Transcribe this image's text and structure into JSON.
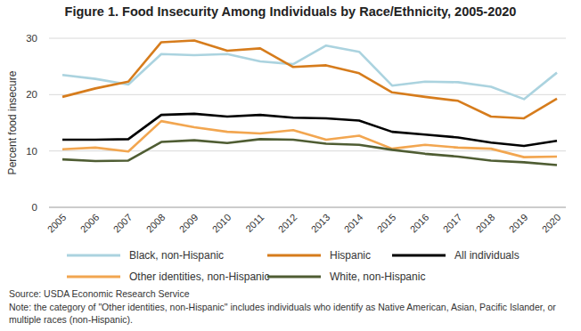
{
  "chart_data": {
    "type": "line",
    "title": "Figure 1. Food Insecurity Among Individuals by Race/Ethnicity, 2005-2020",
    "y_label": "Percent food insecure",
    "categories": [
      "2005",
      "2006",
      "2007",
      "2008",
      "2009",
      "2010",
      "2011",
      "2012",
      "2013",
      "2014",
      "2015",
      "2016",
      "2017",
      "2018",
      "2019",
      "2020"
    ],
    "series": [
      {
        "name": "Black, non-Hispanic",
        "color": "#abd3df",
        "values": [
          23.5,
          22.8,
          21.8,
          27.2,
          27.0,
          27.2,
          25.9,
          25.4,
          28.7,
          27.6,
          21.6,
          22.3,
          22.2,
          21.4,
          19.2,
          23.9
        ]
      },
      {
        "name": "Hispanic",
        "color": "#d67c1c",
        "values": [
          19.6,
          21.1,
          22.3,
          29.3,
          29.6,
          27.8,
          28.2,
          24.9,
          25.2,
          23.8,
          20.4,
          19.6,
          18.9,
          16.1,
          15.8,
          19.3
        ]
      },
      {
        "name": "All individuals",
        "color": "#000000",
        "values": [
          12.0,
          12.0,
          12.1,
          16.4,
          16.6,
          16.1,
          16.4,
          15.9,
          15.8,
          15.4,
          13.4,
          12.9,
          12.4,
          11.5,
          10.9,
          11.8
        ]
      },
      {
        "name": "Other identities, non-Hispanic",
        "color": "#f2a650",
        "values": [
          10.3,
          10.6,
          9.9,
          15.3,
          14.2,
          13.4,
          13.1,
          13.7,
          12.0,
          12.7,
          10.4,
          11.1,
          10.6,
          10.4,
          8.9,
          9.0
        ]
      },
      {
        "name": "White, non-Hispanic",
        "color": "#4f5d33",
        "values": [
          8.5,
          8.2,
          8.3,
          11.6,
          11.9,
          11.4,
          12.1,
          12.0,
          11.3,
          11.1,
          10.2,
          9.5,
          9.0,
          8.3,
          8.0,
          7.5
        ]
      }
    ],
    "ylim": [
      0,
      30
    ],
    "yticks": [
      0,
      10,
      20,
      30
    ],
    "grid": true,
    "legend": "bottom",
    "source": "Source: USDA Economic Research Service",
    "note": "Note: the category of \"Other identities, non-Hispanic\" includes individuals who identify as Native American, Asian, Pacific Islander, or multiple races (non-Hispanic)."
  }
}
